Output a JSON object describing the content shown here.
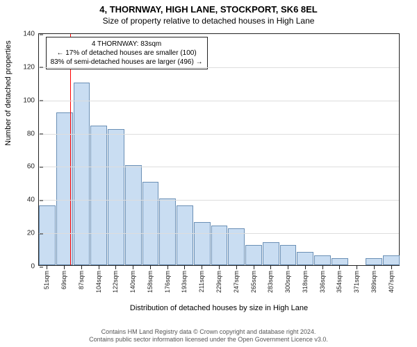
{
  "title": "4, THORNWAY, HIGH LANE, STOCKPORT, SK6 8EL",
  "subtitle": "Size of property relative to detached houses in High Lane",
  "ylabel": "Number of detached properties",
  "xlabel": "Distribution of detached houses by size in High Lane",
  "chart": {
    "type": "bar-histogram",
    "ylim": [
      0,
      140
    ],
    "ytick_step": 20,
    "bar_fill": "#c9ddf2",
    "bar_stroke": "#6a8fb5",
    "grid_color": "#dddddd",
    "axis_color": "#222222",
    "background": "#ffffff",
    "marker_line_color": "#ff0000",
    "marker_x_index": 1.8,
    "bins": [
      {
        "label": "51sqm",
        "value": 36
      },
      {
        "label": "69sqm",
        "value": 92
      },
      {
        "label": "87sqm",
        "value": 110
      },
      {
        "label": "104sqm",
        "value": 84
      },
      {
        "label": "122sqm",
        "value": 82
      },
      {
        "label": "140sqm",
        "value": 60
      },
      {
        "label": "158sqm",
        "value": 50
      },
      {
        "label": "176sqm",
        "value": 40
      },
      {
        "label": "193sqm",
        "value": 36
      },
      {
        "label": "211sqm",
        "value": 26
      },
      {
        "label": "229sqm",
        "value": 24
      },
      {
        "label": "247sqm",
        "value": 22
      },
      {
        "label": "265sqm",
        "value": 12
      },
      {
        "label": "283sqm",
        "value": 14
      },
      {
        "label": "300sqm",
        "value": 12
      },
      {
        "label": "318sqm",
        "value": 8
      },
      {
        "label": "336sqm",
        "value": 6
      },
      {
        "label": "354sqm",
        "value": 4
      },
      {
        "label": "371sqm",
        "value": 0
      },
      {
        "label": "389sqm",
        "value": 4
      },
      {
        "label": "407sqm",
        "value": 6
      }
    ]
  },
  "annotation": {
    "line1": "4 THORNWAY: 83sqm",
    "line2": "← 17% of detached houses are smaller (100)",
    "line3": "83% of semi-detached houses are larger (496) →"
  },
  "footer": {
    "line1": "Contains HM Land Registry data © Crown copyright and database right 2024.",
    "line2": "Contains public sector information licensed under the Open Government Licence v3.0."
  }
}
